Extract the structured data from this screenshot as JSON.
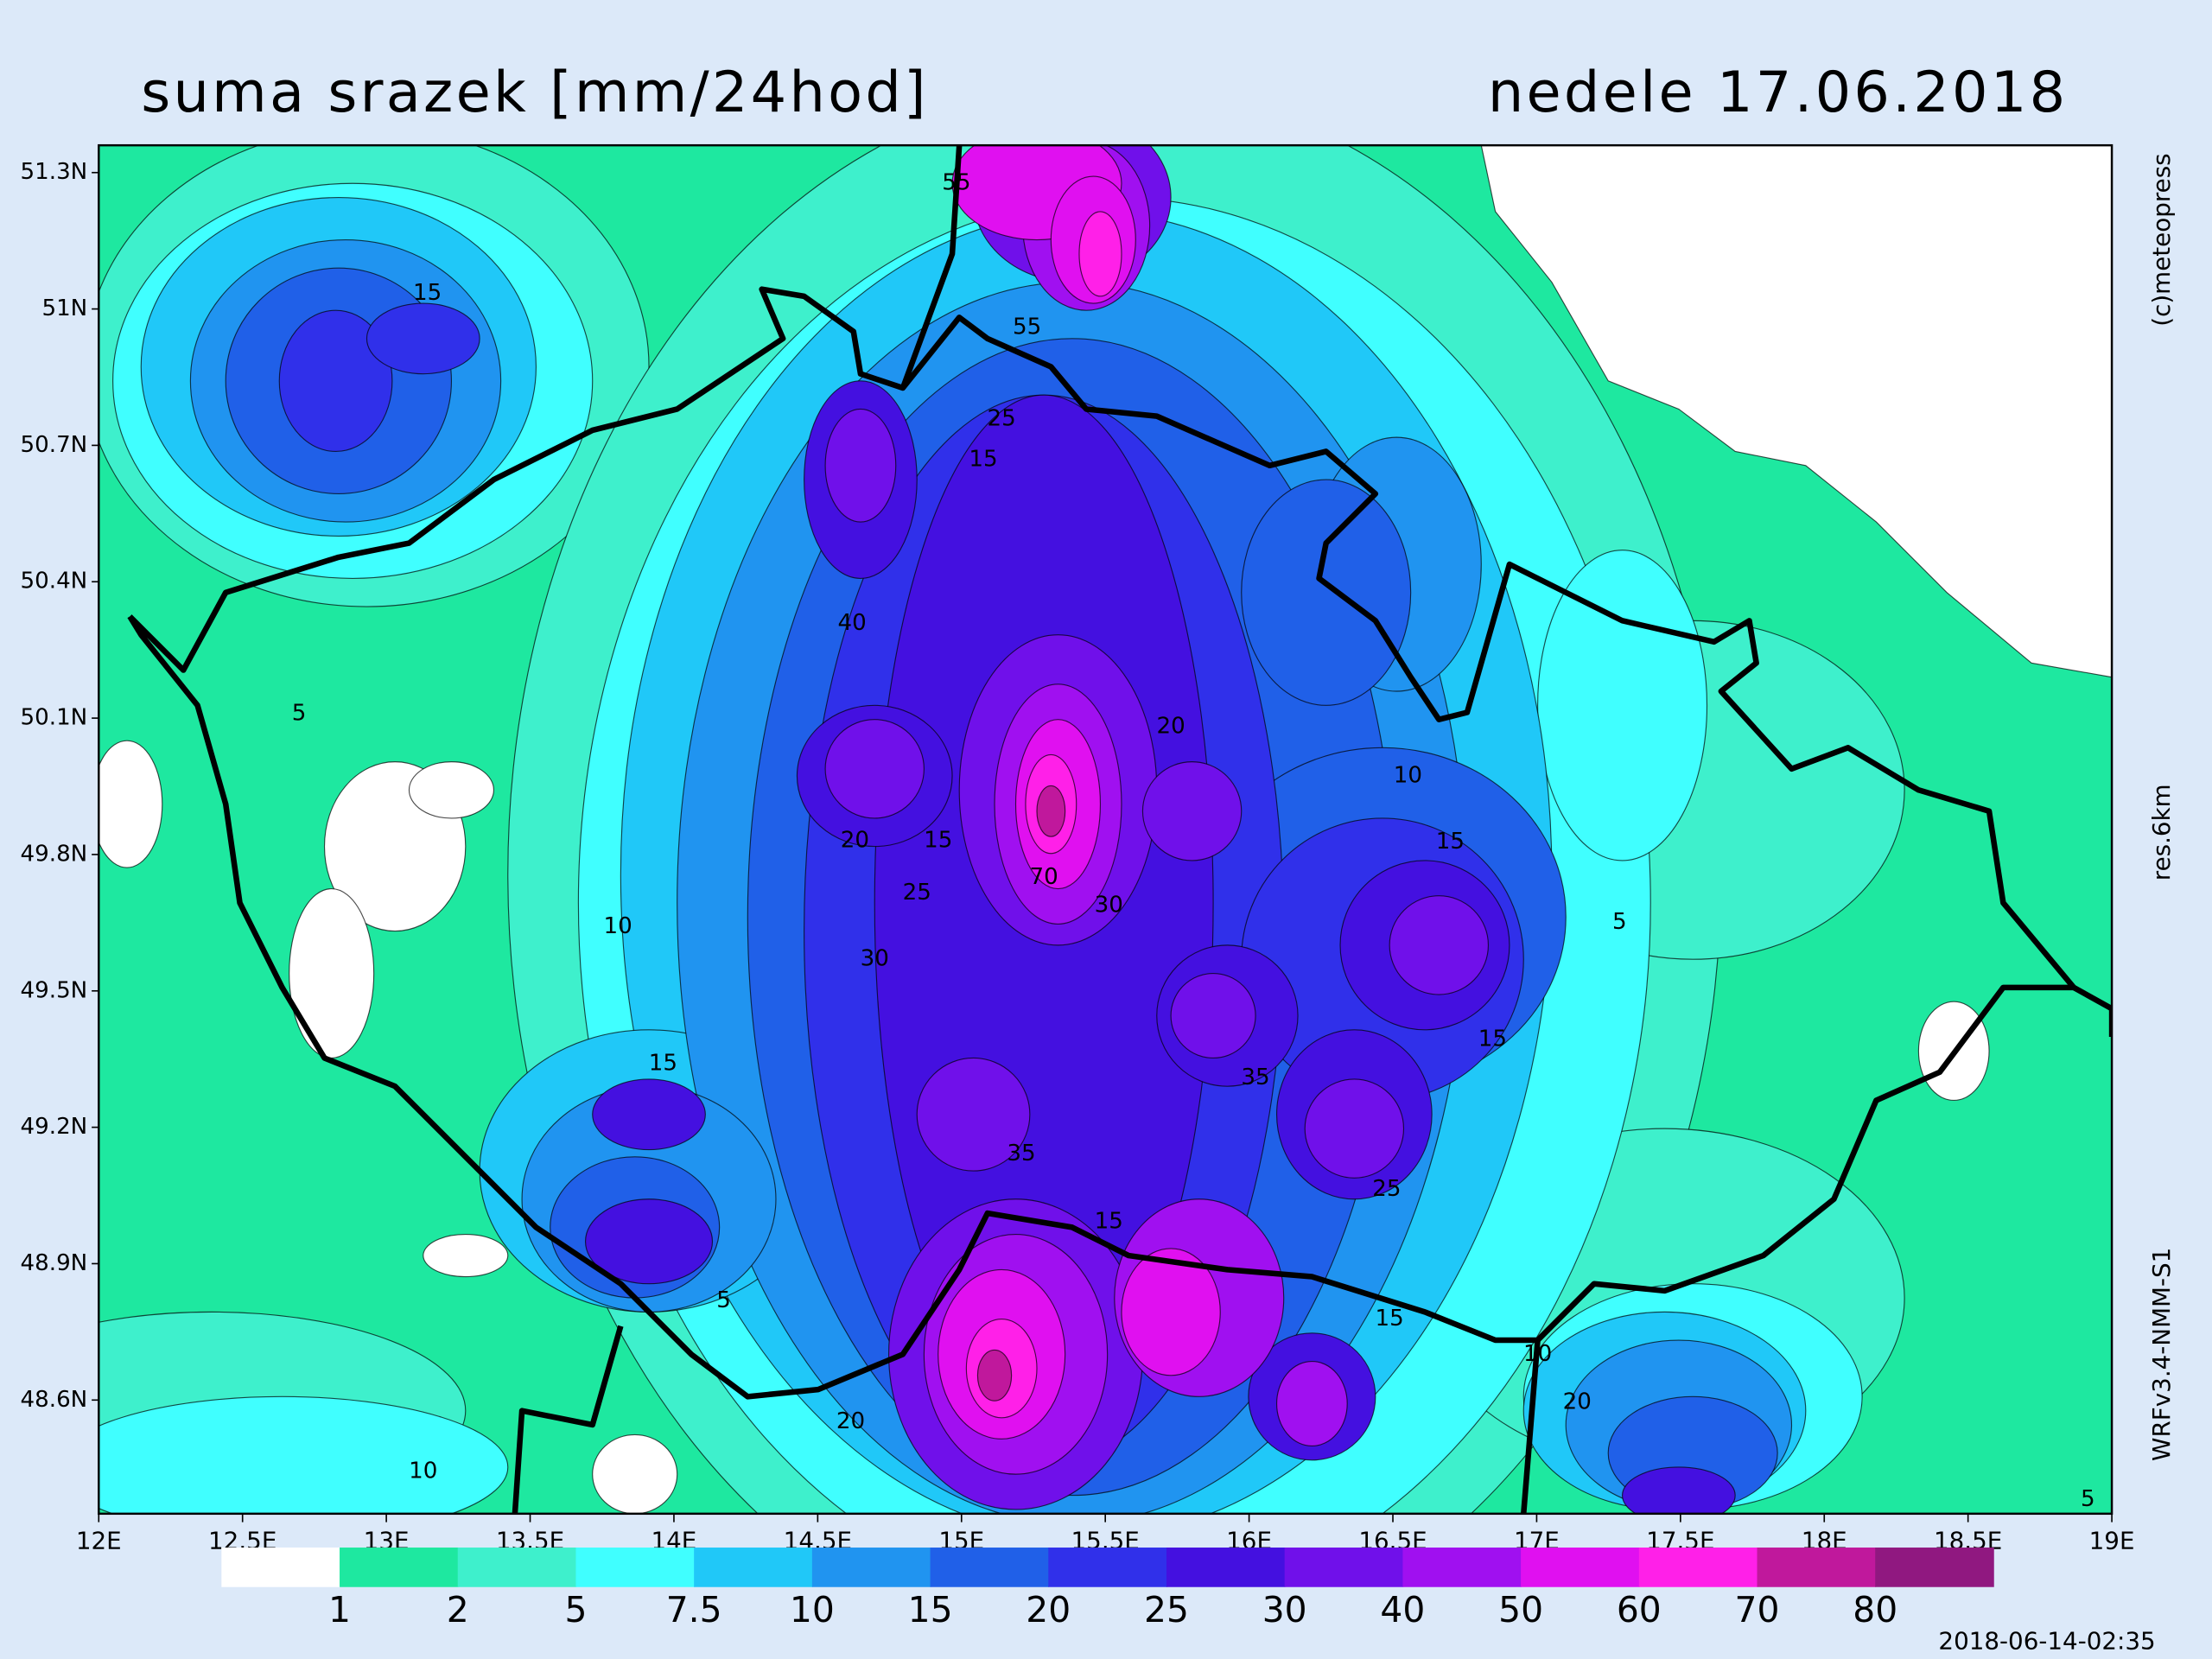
{
  "header": {
    "title": "suma srazek [mm/24hod]",
    "date": "nedele 17.06.2018"
  },
  "map": {
    "xlim": [
      12,
      19
    ],
    "ylim": [
      48.35,
      51.36
    ],
    "xticks": [
      {
        "value": 12,
        "label": "12E"
      },
      {
        "value": 12.5,
        "label": "12.5E"
      },
      {
        "value": 13,
        "label": "13E"
      },
      {
        "value": 13.5,
        "label": "13.5E"
      },
      {
        "value": 14,
        "label": "14E"
      },
      {
        "value": 14.5,
        "label": "14.5E"
      },
      {
        "value": 15,
        "label": "15E"
      },
      {
        "value": 15.5,
        "label": "15.5E"
      },
      {
        "value": 16,
        "label": "16E"
      },
      {
        "value": 16.5,
        "label": "16.5E"
      },
      {
        "value": 17,
        "label": "17E"
      },
      {
        "value": 17.5,
        "label": "17.5E"
      },
      {
        "value": 18,
        "label": "18E"
      },
      {
        "value": 18.5,
        "label": "18.5E"
      },
      {
        "value": 19,
        "label": "19E"
      }
    ],
    "yticks": [
      {
        "value": 51.3,
        "label": "51.3N"
      },
      {
        "value": 51,
        "label": "51N"
      },
      {
        "value": 50.7,
        "label": "50.7N"
      },
      {
        "value": 50.4,
        "label": "50.4N"
      },
      {
        "value": 50.1,
        "label": "50.1N"
      },
      {
        "value": 49.8,
        "label": "49.8N"
      },
      {
        "value": 49.5,
        "label": "49.5N"
      },
      {
        "value": 49.2,
        "label": "49.2N"
      },
      {
        "value": 48.9,
        "label": "48.9N"
      },
      {
        "value": 48.6,
        "label": "48.6N"
      }
    ],
    "contour_labels": [
      "55",
      "55",
      "25",
      "15",
      "15",
      "40",
      "5",
      "20",
      "20",
      "15",
      "25",
      "70",
      "30",
      "10",
      "15",
      "5",
      "10",
      "30",
      "15",
      "15",
      "35",
      "35",
      "15",
      "25",
      "15",
      "5",
      "10",
      "20",
      "20",
      "10",
      "5"
    ]
  },
  "colorbar": {
    "levels": [
      1,
      2,
      5,
      7.5,
      10,
      15,
      20,
      25,
      30,
      40,
      50,
      60,
      70,
      80
    ],
    "colors": [
      "#ffffff",
      "#1ee8a0",
      "#3ef0cc",
      "#40ffff",
      "#20c8f8",
      "#2094f0",
      "#2060e8",
      "#3030ea",
      "#4410e0",
      "#7010ea",
      "#a010f0",
      "#e010f0",
      "#ff20e8",
      "#c0189c",
      "#901880"
    ]
  },
  "side": {
    "copyright": "(c)meteopress",
    "resolution": "res.6km",
    "model": "WRFv3.4-NMM-S1",
    "timestamp": "2018-06-14-02:35"
  }
}
